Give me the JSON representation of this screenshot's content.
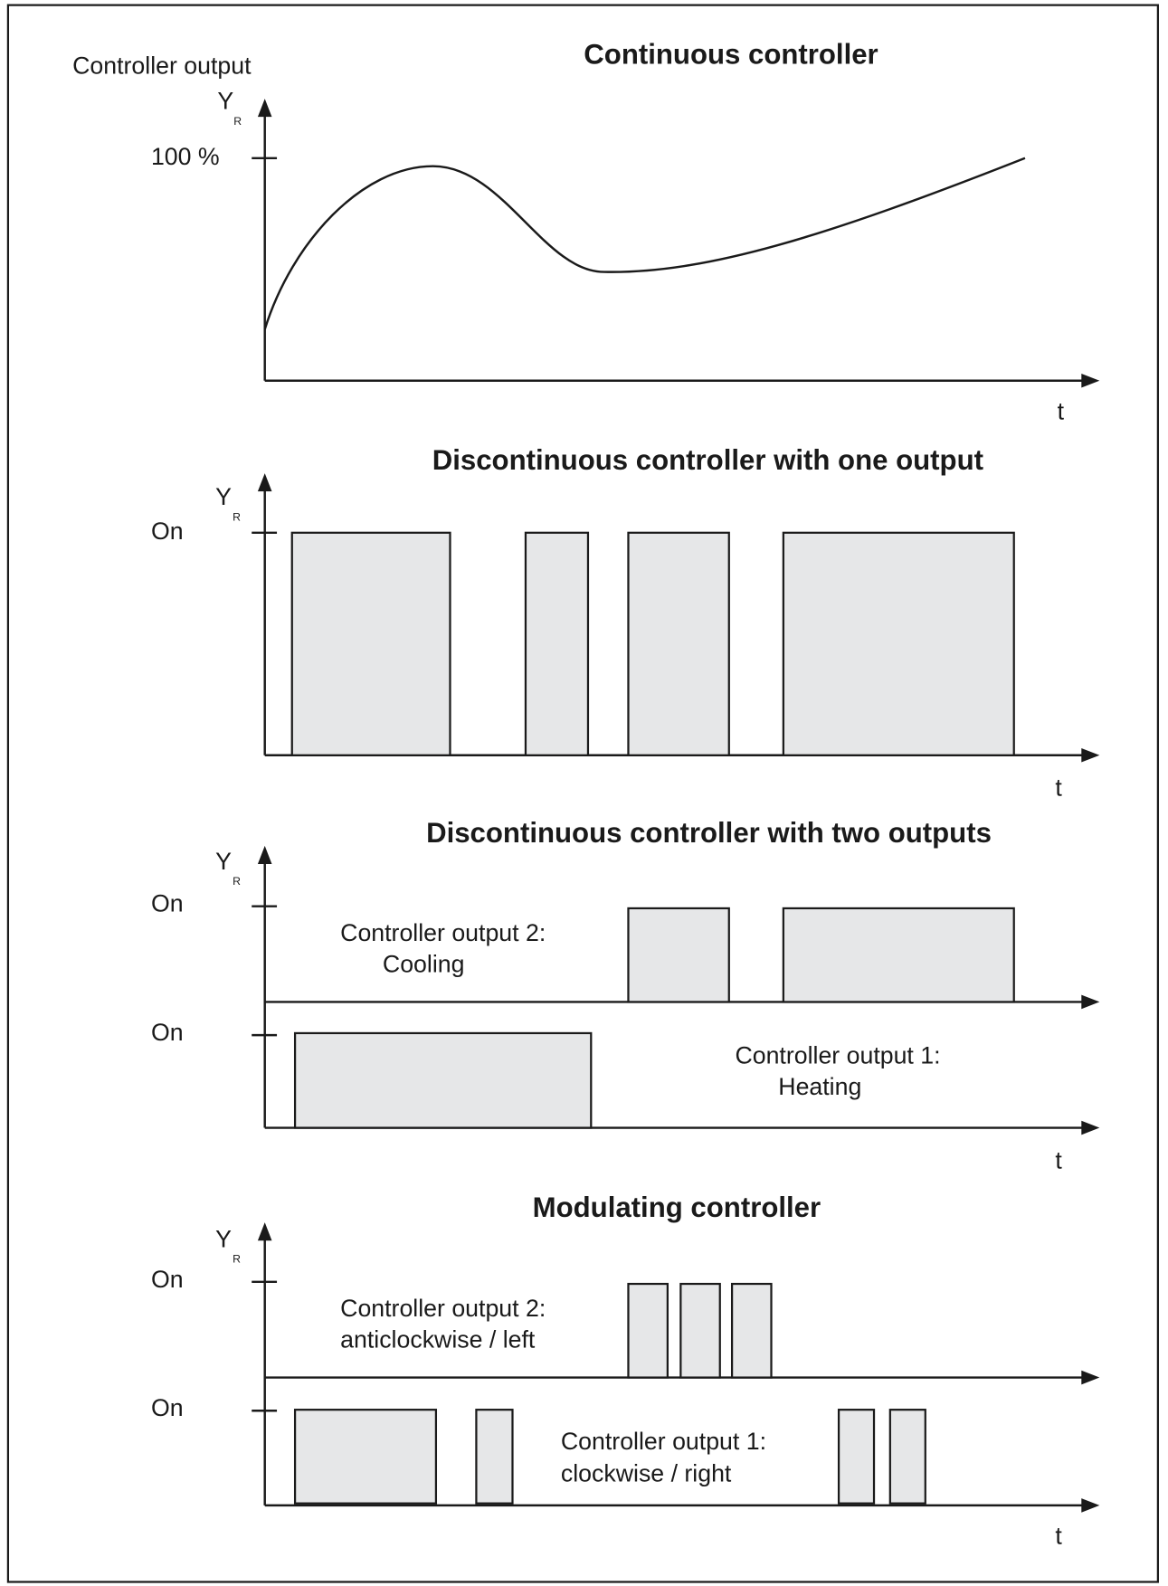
{
  "panels": [
    {
      "title": "Continuous controller",
      "y_axis_label": "Controller output",
      "y_symbol": "Y",
      "y_subscript": "R",
      "y_level": "100 %",
      "x_symbol": "t"
    },
    {
      "title": "Discontinuous controller with one output",
      "y_symbol": "Y",
      "y_subscript": "R",
      "y_level": "On",
      "x_symbol": "t"
    },
    {
      "title": "Discontinuous controller with two outputs",
      "y_symbol": "Y",
      "y_subscript": "R",
      "y_levels": [
        "On",
        "On"
      ],
      "annotations": [
        [
          "Controller output 2:",
          "Cooling"
        ],
        [
          "Controller output 1:",
          "Heating"
        ]
      ],
      "x_symbol": "t"
    },
    {
      "title": "Modulating controller",
      "y_symbol": "Y",
      "y_subscript": "R",
      "y_levels": [
        "On",
        "On"
      ],
      "annotations": [
        [
          "Controller output 2:",
          "anticlockwise / left"
        ],
        [
          "Controller output 1:",
          "clockwise / right"
        ]
      ],
      "x_symbol": "t"
    }
  ]
}
